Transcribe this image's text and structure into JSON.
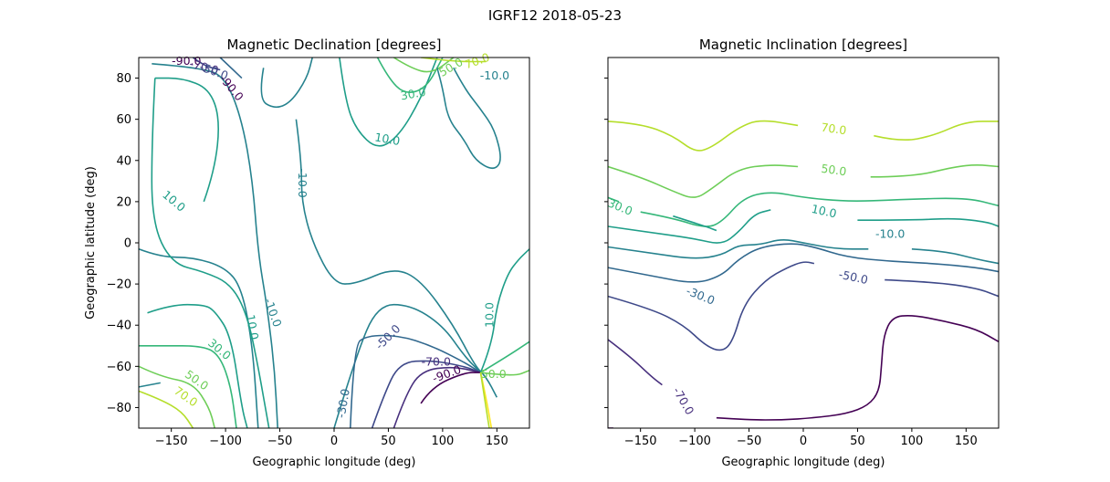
{
  "figure_title": "IGRF12 2018-05-23",
  "colors": {
    "-90": "#440154",
    "-70": "#472f7d",
    "-50": "#3e4989",
    "-30": "#31688e",
    "-10": "#26828e",
    "10": "#1f9e89",
    "30": "#35b779",
    "50": "#6ece58",
    "70": "#b5de2b",
    "90": "#fde725"
  },
  "chart_data": [
    {
      "type": "contour",
      "title": "Magnetic Declination [degrees]",
      "xlabel": "Geographic longitude (deg)",
      "ylabel": "Geographic latitude (deg)",
      "xlim": [
        -180,
        180
      ],
      "ylim": [
        -90,
        90
      ],
      "xticks": [
        -150,
        -100,
        -50,
        0,
        50,
        100,
        150
      ],
      "yticks": [
        -80,
        -60,
        -40,
        -20,
        0,
        20,
        40,
        60,
        80
      ],
      "contour_labels": [
        {
          "text": "10.0",
          "level": 10,
          "x": -148,
          "y": 20,
          "angle": 40
        },
        {
          "text": "-10.0",
          "level": -10,
          "x": -30,
          "y": 29,
          "angle": 90
        },
        {
          "text": "10.0",
          "level": 10,
          "x": 49,
          "y": 50,
          "angle": 10
        },
        {
          "text": "30.0",
          "level": 30,
          "x": 73,
          "y": 72,
          "angle": -10
        },
        {
          "text": "-10.0",
          "level": -10,
          "x": 148,
          "y": 81,
          "angle": 0
        },
        {
          "text": "-10.0",
          "level": -10,
          "x": -57,
          "y": -34,
          "angle": 70
        },
        {
          "text": "10.0",
          "level": 10,
          "x": -76,
          "y": -41,
          "angle": 80
        },
        {
          "text": "30.0",
          "level": 30,
          "x": -106,
          "y": -52,
          "angle": 40
        },
        {
          "text": "50.0",
          "level": 50,
          "x": -127,
          "y": -67,
          "angle": 35
        },
        {
          "text": "70.0",
          "level": 70,
          "x": -137,
          "y": -75,
          "angle": 35
        },
        {
          "text": "-30.0",
          "level": -30,
          "x": 9,
          "y": -78,
          "angle": -80
        },
        {
          "text": "-50.0",
          "level": -50,
          "x": 50,
          "y": -46,
          "angle": -45
        },
        {
          "text": "-70.0",
          "level": -70,
          "x": 94,
          "y": -58,
          "angle": 0
        },
        {
          "text": "-90.0",
          "level": -90,
          "x": 104,
          "y": -64,
          "angle": -20
        },
        {
          "text": "10.0",
          "level": 10,
          "x": 144,
          "y": -35,
          "angle": -90
        },
        {
          "text": "50.0",
          "level": 50,
          "x": 147,
          "y": -64,
          "angle": 0
        },
        {
          "text": "-90.0",
          "level": -90,
          "x": -136,
          "y": 88,
          "angle": 0
        },
        {
          "text": "-70.0",
          "level": -70,
          "x": -120,
          "y": 85,
          "angle": 15
        },
        {
          "text": "-50.0",
          "level": -50,
          "x": -111,
          "y": 83,
          "angle": 20
        },
        {
          "text": "-90.0",
          "level": -90,
          "x": -95,
          "y": 75,
          "angle": 50
        },
        {
          "text": "50.0",
          "level": 50,
          "x": 108,
          "y": 85,
          "angle": -30
        },
        {
          "text": "70.0",
          "level": 70,
          "x": 132,
          "y": 88,
          "angle": -20
        }
      ]
    },
    {
      "type": "contour",
      "title": "Magnetic Inclination [degrees]",
      "xlabel": "Geographic longitude (deg)",
      "ylabel": "",
      "xlim": [
        -180,
        180
      ],
      "ylim": [
        -90,
        90
      ],
      "xticks": [
        -150,
        -100,
        -50,
        0,
        50,
        100,
        150
      ],
      "yticks": [
        -80,
        -60,
        -40,
        -20,
        0,
        20,
        40,
        60,
        80
      ],
      "contour_labels": [
        {
          "text": "70.0",
          "level": 70,
          "x": 28,
          "y": 55,
          "angle": 8
        },
        {
          "text": "50.0",
          "level": 50,
          "x": 28,
          "y": 35,
          "angle": 8
        },
        {
          "text": "30.0",
          "level": 30,
          "x": -169,
          "y": 17,
          "angle": 22
        },
        {
          "text": "10.0",
          "level": 10,
          "x": 19,
          "y": 15,
          "angle": 12
        },
        {
          "text": "-10.0",
          "level": -10,
          "x": 80,
          "y": 4,
          "angle": 0
        },
        {
          "text": "-50.0",
          "level": -50,
          "x": 46,
          "y": -17,
          "angle": 12
        },
        {
          "text": "-30.0",
          "level": -30,
          "x": -95,
          "y": -26,
          "angle": 22
        },
        {
          "text": "-70.0",
          "level": -70,
          "x": -111,
          "y": -77,
          "angle": 60
        }
      ]
    }
  ]
}
